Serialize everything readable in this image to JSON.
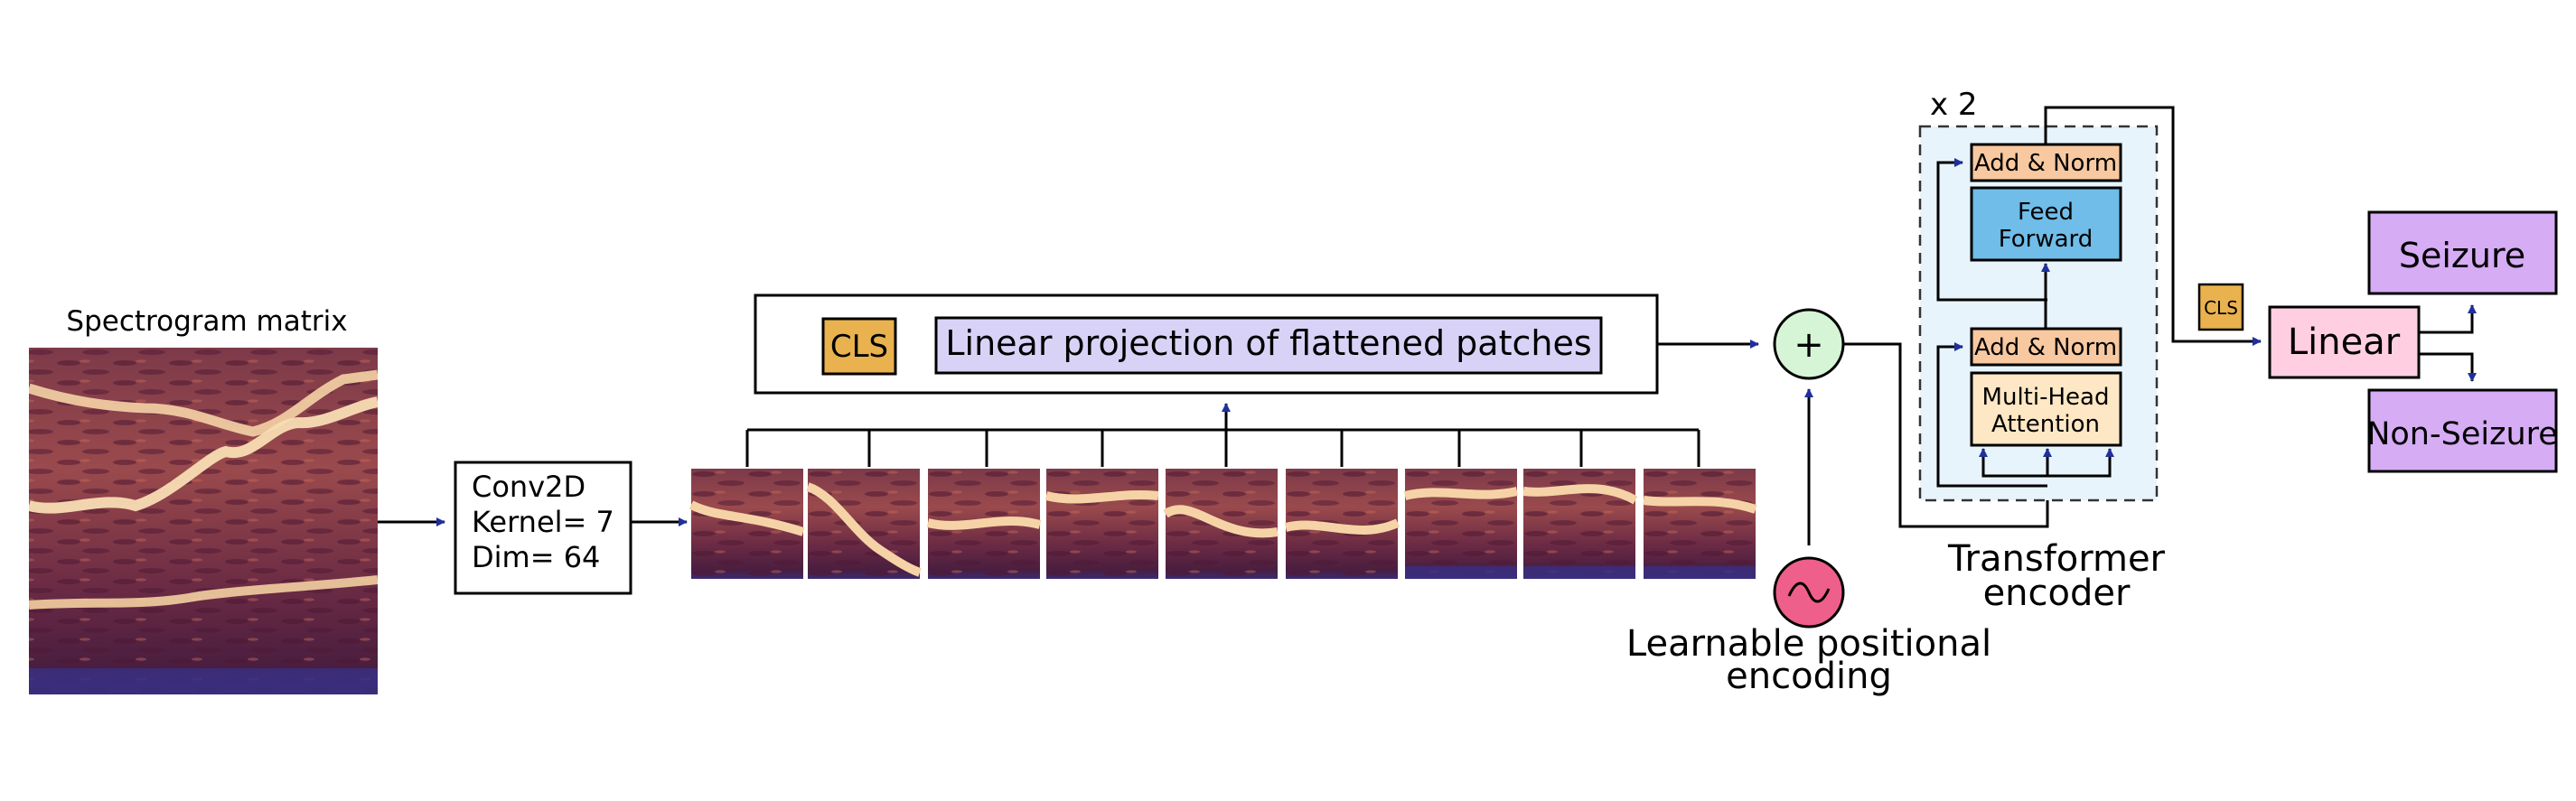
{
  "spectrogram": {
    "title": "Spectrogram matrix"
  },
  "conv": {
    "line1": "Conv2D",
    "line2": "Kernel= 7",
    "line3": "Dim= 64"
  },
  "projection": {
    "cls": "CLS",
    "label": "Linear projection of flattened patches"
  },
  "positional": {
    "line1": "Learnable positional",
    "line2": "encoding"
  },
  "sum_symbol": "+",
  "encoder": {
    "repeat": "x 2",
    "add_norm": "Add & Norm",
    "feed_forward_line1": "Feed",
    "feed_forward_line2": "Forward",
    "attention_line1": "Multi-Head",
    "attention_line2": "Attention",
    "caption_line1": "Transformer",
    "caption_line2": "encoder"
  },
  "head": {
    "cls": "CLS",
    "linear": "Linear"
  },
  "outputs": {
    "seizure": "Seizure",
    "non_seizure": "Non-Seizure"
  },
  "colors": {
    "spectrogram_dark": "#5a1f3c",
    "spectrogram_mid": "#a4504a",
    "spectrogram_light": "#f7dcb0",
    "cls": "#e9b24e",
    "projection": "#d9d2f7",
    "add_norm": "#f8c9a0",
    "feed_forward": "#6fbde8",
    "attention": "#fde7c4",
    "encoder_bg": "#e8f4fb",
    "sum_node": "#d6f5d6",
    "positional": "#ef5f8b",
    "linear": "#ffcfe1",
    "output": "#d6acf5",
    "arrowhead": "#1f2f9c"
  }
}
